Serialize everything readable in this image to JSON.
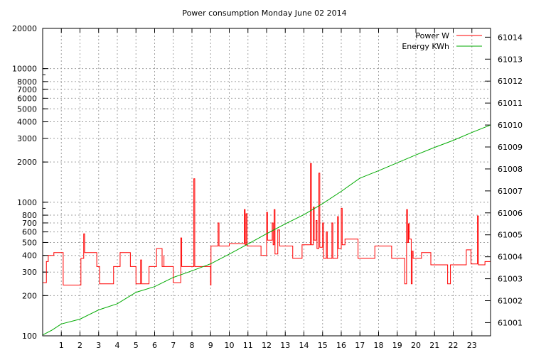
{
  "chart_data": {
    "type": "line",
    "title": "Power consumption Monday June 02 2014",
    "xlabel": "",
    "ylabel": "",
    "grid": true,
    "legend_position": "top-right",
    "x_axis": {
      "min": 0,
      "max": 24,
      "tick_labels": [
        "1",
        "2",
        "3",
        "4",
        "5",
        "6",
        "7",
        "8",
        "9",
        "10",
        "11",
        "12",
        "13",
        "14",
        "15",
        "16",
        "17",
        "18",
        "19",
        "20",
        "21",
        "22",
        "23"
      ]
    },
    "y_axis_left": {
      "scale": "log",
      "min": 100,
      "max": 20000,
      "tick_labels": [
        "100",
        "200",
        "300",
        "400",
        "500",
        "600",
        "700",
        "800",
        "1000",
        "2000",
        "3000",
        "4000",
        "5000",
        "6000",
        "7000",
        "8000",
        "10000",
        "20000"
      ],
      "major_ticks": [
        100,
        200,
        300,
        400,
        500,
        600,
        700,
        800,
        1000,
        2000,
        3000,
        4000,
        5000,
        6000,
        7000,
        8000,
        10000,
        20000
      ]
    },
    "y_axis_right": {
      "scale": "linear",
      "min": 61000.4,
      "max": 61014.4,
      "tick_labels": [
        "61001",
        "61002",
        "61003",
        "61004",
        "61005",
        "61006",
        "61007",
        "61008",
        "61009",
        "61010",
        "61011",
        "61012",
        "61013",
        "61014"
      ]
    },
    "series": [
      {
        "name": "Power W",
        "axis": "left",
        "color": "#ff0000",
        "points": [
          [
            0.0,
            250
          ],
          [
            0.2,
            250
          ],
          [
            0.2,
            360
          ],
          [
            0.3,
            360
          ],
          [
            0.3,
            400
          ],
          [
            0.6,
            400
          ],
          [
            0.6,
            420
          ],
          [
            1.1,
            420
          ],
          [
            1.1,
            240
          ],
          [
            2.05,
            240
          ],
          [
            2.05,
            380
          ],
          [
            2.2,
            380
          ],
          [
            2.2,
            580
          ],
          [
            2.25,
            580
          ],
          [
            2.25,
            420
          ],
          [
            2.9,
            420
          ],
          [
            2.9,
            330
          ],
          [
            3.05,
            330
          ],
          [
            3.05,
            245
          ],
          [
            3.8,
            245
          ],
          [
            3.8,
            330
          ],
          [
            4.15,
            330
          ],
          [
            4.15,
            420
          ],
          [
            4.7,
            420
          ],
          [
            4.7,
            330
          ],
          [
            5.0,
            330
          ],
          [
            5.0,
            245
          ],
          [
            5.25,
            245
          ],
          [
            5.25,
            370
          ],
          [
            5.3,
            370
          ],
          [
            5.3,
            245
          ],
          [
            5.7,
            245
          ],
          [
            5.7,
            330
          ],
          [
            6.1,
            330
          ],
          [
            6.1,
            450
          ],
          [
            6.4,
            450
          ],
          [
            6.4,
            330
          ],
          [
            6.5,
            330
          ],
          [
            6.5,
            400
          ],
          [
            6.5,
            400
          ],
          [
            6.5,
            330
          ],
          [
            7.0,
            330
          ],
          [
            7.0,
            250
          ],
          [
            7.4,
            250
          ],
          [
            7.4,
            540
          ],
          [
            7.45,
            540
          ],
          [
            7.45,
            330
          ],
          [
            8.1,
            330
          ],
          [
            8.1,
            1500
          ],
          [
            8.15,
            1500
          ],
          [
            8.15,
            330
          ],
          [
            9.0,
            330
          ],
          [
            9.0,
            240
          ],
          [
            9.02,
            240
          ],
          [
            9.02,
            470
          ],
          [
            9.4,
            470
          ],
          [
            9.4,
            700
          ],
          [
            9.45,
            700
          ],
          [
            9.45,
            470
          ],
          [
            10.0,
            470
          ],
          [
            10.0,
            490
          ],
          [
            10.8,
            490
          ],
          [
            10.8,
            880
          ],
          [
            10.85,
            880
          ],
          [
            10.85,
            480
          ],
          [
            10.9,
            480
          ],
          [
            10.9,
            820
          ],
          [
            10.95,
            820
          ],
          [
            10.95,
            470
          ],
          [
            11.7,
            470
          ],
          [
            11.7,
            400
          ],
          [
            12.0,
            400
          ],
          [
            12.0,
            840
          ],
          [
            12.05,
            840
          ],
          [
            12.05,
            520
          ],
          [
            12.3,
            520
          ],
          [
            12.3,
            700
          ],
          [
            12.35,
            700
          ],
          [
            12.35,
            480
          ],
          [
            12.4,
            480
          ],
          [
            12.4,
            880
          ],
          [
            12.45,
            880
          ],
          [
            12.45,
            410
          ],
          [
            12.6,
            410
          ],
          [
            12.6,
            620
          ],
          [
            12.7,
            620
          ],
          [
            12.7,
            470
          ],
          [
            13.4,
            470
          ],
          [
            13.4,
            380
          ],
          [
            13.9,
            380
          ],
          [
            13.9,
            480
          ],
          [
            14.35,
            480
          ],
          [
            14.35,
            1950
          ],
          [
            14.4,
            1950
          ],
          [
            14.4,
            480
          ],
          [
            14.5,
            480
          ],
          [
            14.5,
            920
          ],
          [
            14.55,
            920
          ],
          [
            14.55,
            520
          ],
          [
            14.65,
            520
          ],
          [
            14.65,
            730
          ],
          [
            14.7,
            730
          ],
          [
            14.7,
            450
          ],
          [
            14.8,
            450
          ],
          [
            14.8,
            1650
          ],
          [
            14.85,
            1650
          ],
          [
            14.85,
            460
          ],
          [
            15.0,
            460
          ],
          [
            15.0,
            700
          ],
          [
            15.05,
            700
          ],
          [
            15.05,
            380
          ],
          [
            15.2,
            380
          ],
          [
            15.2,
            600
          ],
          [
            15.25,
            600
          ],
          [
            15.25,
            380
          ],
          [
            15.5,
            380
          ],
          [
            15.5,
            700
          ],
          [
            15.55,
            700
          ],
          [
            15.55,
            380
          ],
          [
            15.8,
            380
          ],
          [
            15.8,
            780
          ],
          [
            15.85,
            780
          ],
          [
            15.85,
            450
          ],
          [
            16.0,
            450
          ],
          [
            16.0,
            900
          ],
          [
            16.05,
            900
          ],
          [
            16.05,
            480
          ],
          [
            16.2,
            480
          ],
          [
            16.2,
            530
          ],
          [
            16.9,
            530
          ],
          [
            16.9,
            380
          ],
          [
            17.8,
            380
          ],
          [
            17.8,
            470
          ],
          [
            18.7,
            470
          ],
          [
            18.7,
            380
          ],
          [
            19.4,
            380
          ],
          [
            19.4,
            245
          ],
          [
            19.5,
            245
          ],
          [
            19.5,
            880
          ],
          [
            19.55,
            880
          ],
          [
            19.55,
            500
          ],
          [
            19.6,
            500
          ],
          [
            19.6,
            690
          ],
          [
            19.65,
            690
          ],
          [
            19.65,
            530
          ],
          [
            19.75,
            530
          ],
          [
            19.75,
            245
          ],
          [
            19.8,
            245
          ],
          [
            19.8,
            430
          ],
          [
            19.85,
            430
          ],
          [
            19.85,
            380
          ],
          [
            20.3,
            380
          ],
          [
            20.3,
            420
          ],
          [
            20.8,
            420
          ],
          [
            20.8,
            340
          ],
          [
            21.7,
            340
          ],
          [
            21.7,
            245
          ],
          [
            21.85,
            245
          ],
          [
            21.85,
            340
          ],
          [
            22.7,
            340
          ],
          [
            22.7,
            440
          ],
          [
            22.95,
            440
          ],
          [
            22.95,
            345
          ],
          [
            23.3,
            345
          ],
          [
            23.3,
            790
          ],
          [
            23.35,
            790
          ],
          [
            23.35,
            340
          ],
          [
            23.7,
            340
          ],
          [
            23.7,
            360
          ],
          [
            24.0,
            360
          ]
        ]
      },
      {
        "name": "Energy KWh",
        "axis": "right",
        "color": "#00aa00",
        "points": [
          [
            0.0,
            61000.44
          ],
          [
            0.5,
            61000.66
          ],
          [
            1.0,
            61000.94
          ],
          [
            2.0,
            61001.16
          ],
          [
            3.0,
            61001.58
          ],
          [
            4.0,
            61001.86
          ],
          [
            5.0,
            61002.38
          ],
          [
            6.0,
            61002.64
          ],
          [
            7.0,
            61003.06
          ],
          [
            8.0,
            61003.36
          ],
          [
            9.0,
            61003.68
          ],
          [
            10.0,
            61004.12
          ],
          [
            11.0,
            61004.58
          ],
          [
            12.0,
            61005.05
          ],
          [
            13.0,
            61005.5
          ],
          [
            14.0,
            61005.92
          ],
          [
            15.0,
            61006.42
          ],
          [
            16.0,
            61006.98
          ],
          [
            17.0,
            61007.58
          ],
          [
            18.0,
            61007.92
          ],
          [
            19.0,
            61008.28
          ],
          [
            20.0,
            61008.64
          ],
          [
            21.0,
            61008.98
          ],
          [
            22.0,
            61009.3
          ],
          [
            23.0,
            61009.66
          ],
          [
            24.0,
            61010.0
          ]
        ]
      }
    ]
  }
}
